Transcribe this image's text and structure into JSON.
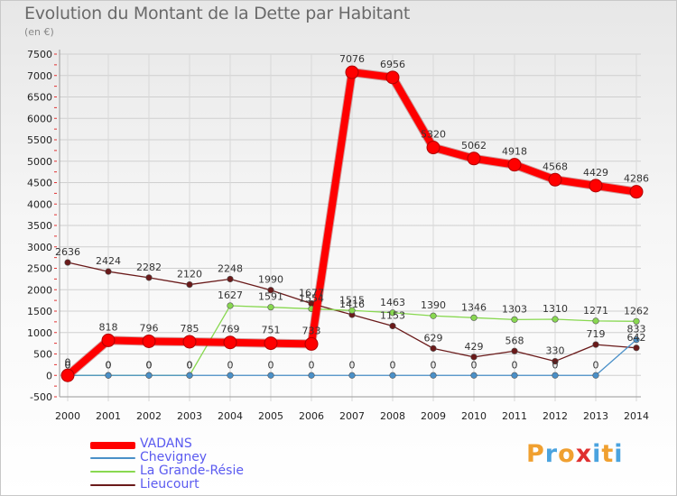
{
  "title": "Evolution du Montant de la Dette par Habitant",
  "subtitle": "(en €)",
  "logo": {
    "text": "Proxiti",
    "colors": [
      "#f0a030",
      "#4aa3df",
      "#f0a030",
      "#e03030",
      "#4aa3df",
      "#f0a030",
      "#4aa3df"
    ]
  },
  "chart_data": {
    "type": "line",
    "title": "Evolution du Montant de la Dette par Habitant",
    "ylabel": "(en €)",
    "ylim": [
      -500,
      7500
    ],
    "yticks": [
      -500,
      0,
      500,
      1000,
      1500,
      2000,
      2500,
      3000,
      3500,
      4000,
      4500,
      5000,
      5500,
      6000,
      6500,
      7000,
      7500
    ],
    "x": [
      "2000",
      "2001",
      "2002",
      "2003",
      "2004",
      "2005",
      "2006",
      "2007",
      "2008",
      "2009",
      "2010",
      "2011",
      "2012",
      "2013",
      "2014"
    ],
    "grid": true,
    "legend_position": "bottom-left",
    "series": [
      {
        "name": "VADANS",
        "color": "#ff0000",
        "width": 8,
        "marker": 7,
        "values": [
          0,
          818,
          796,
          785,
          769,
          751,
          733,
          7076,
          6956,
          5320,
          5062,
          4918,
          4568,
          4429,
          4286
        ],
        "labels": [
          "0",
          "818",
          "796",
          "785",
          "769",
          "751",
          "733",
          "7076",
          "6956",
          "5320",
          "5062",
          "4918",
          "4568",
          "4429",
          "4286"
        ]
      },
      {
        "name": "Chevigney",
        "color": "#4a90c8",
        "width": 1.3,
        "marker": 3.3,
        "values": [
          0,
          0,
          0,
          0,
          0,
          0,
          0,
          0,
          0,
          0,
          0,
          0,
          0,
          0,
          833
        ],
        "labels": [
          "0",
          "0",
          "0",
          "0",
          "0",
          "0",
          "0",
          "0",
          "0",
          "0",
          "0",
          "0",
          "0",
          "0",
          "833"
        ]
      },
      {
        "name": "La Grande-Résie",
        "color": "#88d850",
        "width": 1.3,
        "marker": 3.3,
        "values": [
          0,
          0,
          0,
          0,
          1627,
          1591,
          1554,
          1515,
          1463,
          1390,
          1346,
          1303,
          1310,
          1271,
          1262
        ],
        "labels": [
          "0",
          "0",
          "0",
          "0",
          "1627",
          "1591",
          "1554",
          "1515",
          "1463",
          "1390",
          "1346",
          "1303",
          "1310",
          "1271",
          "1262"
        ]
      },
      {
        "name": "Lieucourt",
        "color": "#6a1a1a",
        "width": 1.3,
        "marker": 3.3,
        "values": [
          2636,
          2424,
          2282,
          2120,
          2248,
          1990,
          1677,
          1416,
          1153,
          629,
          429,
          568,
          330,
          719,
          642
        ],
        "labels": [
          "2636",
          "2424",
          "2282",
          "2120",
          "2248",
          "1990",
          "1677",
          "1416",
          "1153",
          "629",
          "429",
          "568",
          "330",
          "719",
          "642"
        ]
      }
    ]
  }
}
